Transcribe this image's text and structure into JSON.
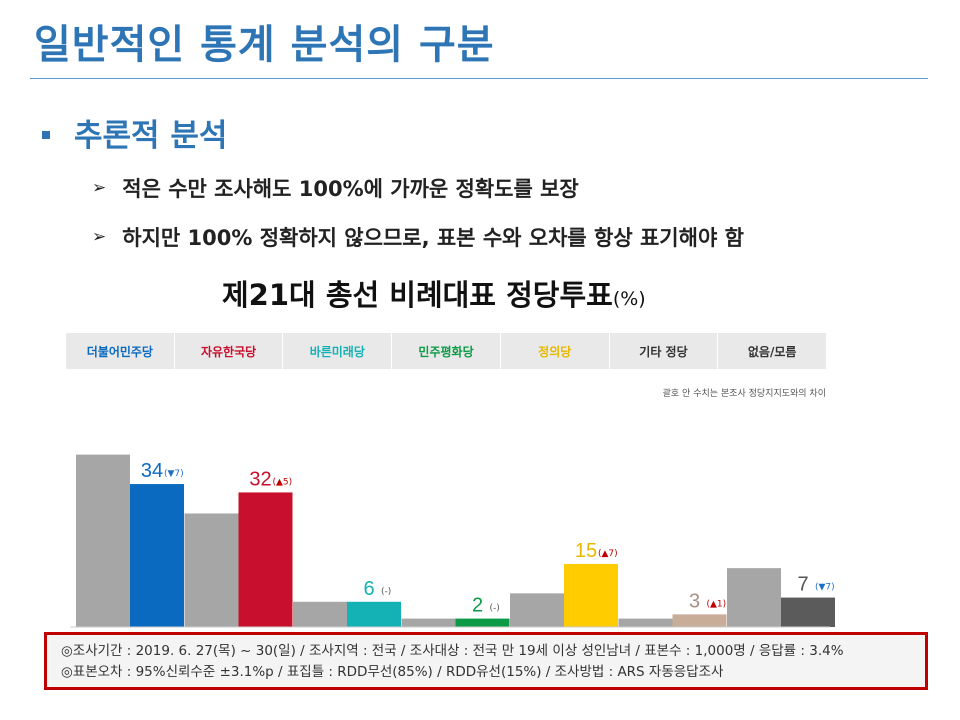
{
  "slide": {
    "title": "일반적인 통계 분석의 구분",
    "bullet": "추론적 분석",
    "sub_bullets": [
      "적은 수만 조사해도 100%에 가까운 정확도를 보장",
      "하지만 100% 정확하지 않으므로, 표본 수와 오차를 항상 표기해야 함"
    ]
  },
  "colors": {
    "title_blue": "#2e75b6",
    "prev_bar_gray": "#a6a6a6",
    "down_arrow_blue": "#1f6fc5",
    "up_arrow_red": "#c00000",
    "footnote_border": "#c00000"
  },
  "chart_data": {
    "type": "bar",
    "title": "제21대 총선 비례대표 정당투표",
    "unit": "(%)",
    "note": "괄호 안 수치는 본조사 정당지지도와의 차이",
    "categories": [
      "더불어민주당",
      "자유한국당",
      "바른미래당",
      "민주평화당",
      "정의당",
      "기타 정당",
      "없음/모름"
    ],
    "series": [
      {
        "values": [
          34,
          32,
          6,
          2,
          15,
          3,
          7
        ],
        "colors": [
          "#0a6ac0",
          "#c8102e",
          "#14b1b5",
          "#0c9a46",
          "#ffcc00",
          "#c8ad98",
          "#5b5b5b"
        ],
        "value_colors": [
          "#0a6ac0",
          "#c8102e",
          "#14b1b5",
          "#0c9a46",
          "#e8b800",
          "#a89080",
          "#555555"
        ]
      },
      {
        "values": [
          41,
          27,
          6,
          2,
          8,
          2,
          14
        ],
        "color": "#a6a6a6"
      }
    ],
    "diff_labels": [
      "▼7",
      "▲5",
      "-",
      "-",
      "▲7",
      "▲1",
      "▼7"
    ],
    "diff_directions": [
      "down",
      "up",
      "none",
      "none",
      "up",
      "up",
      "down"
    ],
    "ylim": [
      0,
      44
    ],
    "grid": false
  },
  "footnote": {
    "line1": "◎조사기간 : 2019. 6. 27(목) ~ 30(일) / 조사지역 : 전국 / 조사대상 : 전국 만 19세 이상 성인남녀 / 표본수 : 1,000명 / 응답률 : 3.4%",
    "line2": "◎표본오차 : 95%신뢰수준 ±3.1%p / 표집틀 : RDD무선(85%) / RDD유선(15%) / 조사방법 : ARS 자동응답조사"
  }
}
